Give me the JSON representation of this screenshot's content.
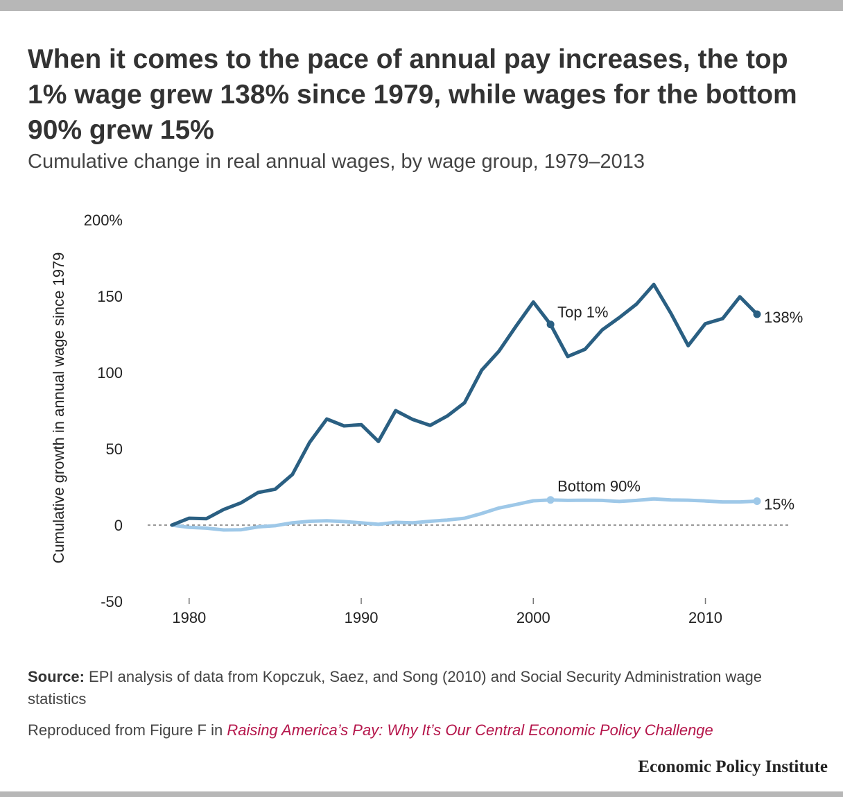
{
  "title": "When it comes to the pace of annual pay increases, the top 1% wage grew 138% since 1979, while wages for the bottom 90% grew 15%",
  "subtitle": "Cumulative change in real annual wages, by wage group, 1979–2013",
  "source": {
    "label": "Source:",
    "text": "EPI analysis of data from Kopczuk, Saez, and Song (2010) and Social Security Administration wage statistics"
  },
  "reproduced": {
    "prefix": "Reproduced from Figure F in",
    "link_text": "Raising America’s Pay: Why It’s Our Central Economic Policy Challenge"
  },
  "brand": "Economic Policy Institute",
  "colors": {
    "top1": "#2a5f82",
    "bottom90": "#9ec8e8",
    "accent_link": "#b5164b",
    "frame_bar": "#b7b7b7"
  },
  "chart_data": {
    "type": "line",
    "title": "",
    "xlabel": "",
    "ylabel": "Cumulative growth in annual wage since 1979",
    "xlim": [
      1979,
      2013
    ],
    "ylim": [
      -50,
      200
    ],
    "x_ticks": [
      1980,
      1990,
      2000,
      2010
    ],
    "y_ticks": [
      {
        "value": 200,
        "label": "200%"
      },
      {
        "value": 150,
        "label": "150"
      },
      {
        "value": 100,
        "label": "100"
      },
      {
        "value": 50,
        "label": "50"
      },
      {
        "value": 0,
        "label": "0"
      },
      {
        "value": -50,
        "label": "-50"
      }
    ],
    "grid": false,
    "zero_line": true,
    "x": [
      1979,
      1980,
      1981,
      1982,
      1983,
      1984,
      1985,
      1986,
      1987,
      1988,
      1989,
      1990,
      1991,
      1992,
      1993,
      1994,
      1995,
      1996,
      1997,
      1998,
      1999,
      2000,
      2001,
      2002,
      2003,
      2004,
      2005,
      2006,
      2007,
      2008,
      2009,
      2010,
      2011,
      2012,
      2013
    ],
    "series": [
      {
        "name": "Top 1%",
        "color": "#2a5f82",
        "values": [
          0,
          4.5,
          4.2,
          10.2,
          14.5,
          21.3,
          23.5,
          33.2,
          54.2,
          69.5,
          65,
          65.8,
          54.8,
          75,
          69.2,
          65.3,
          71.5,
          80.1,
          101.5,
          113.9,
          130.4,
          146.2,
          131.5,
          110.5,
          115.2,
          127.9,
          136,
          144.8,
          157.7,
          138.7,
          117.6,
          132,
          135.3,
          149.6,
          138.2
        ],
        "highlight_x": 2001,
        "end_label": "138%"
      },
      {
        "name": "Bottom 90%",
        "color": "#9ec8e8",
        "values": [
          0,
          -1.5,
          -2,
          -3.2,
          -3.1,
          -1.2,
          -0.4,
          1.5,
          2.5,
          2.8,
          2.3,
          1.5,
          0.5,
          1.8,
          1.5,
          2.5,
          3.3,
          4.5,
          7.6,
          11.2,
          13.5,
          15.9,
          16.5,
          16.2,
          16.3,
          16.2,
          15.5,
          16.2,
          17.2,
          16.5,
          16.3,
          15.8,
          15.2,
          15.2,
          15.7
        ],
        "highlight_x": 2001,
        "end_label": "15%"
      }
    ]
  }
}
